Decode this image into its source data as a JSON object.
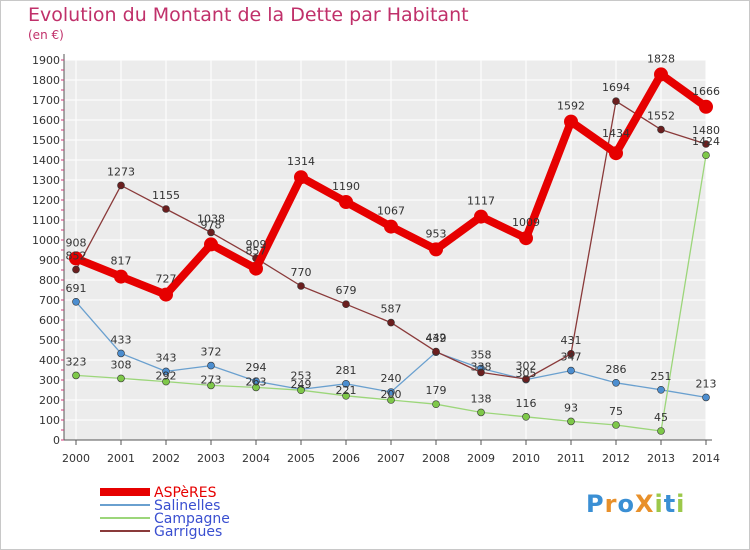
{
  "title": "Evolution du Montant de la Dette par Habitant",
  "unit": "(en €)",
  "logo": {
    "text": "ProXiti",
    "letter_colors": [
      "#3a8fd4",
      "#e8902a",
      "#3a8fd4",
      "#e8902a",
      "#9cc84a",
      "#3a8fd4",
      "#9cc84a"
    ]
  },
  "chart_data": {
    "type": "line",
    "categories": [
      "2000",
      "2001",
      "2002",
      "2003",
      "2004",
      "2005",
      "2006",
      "2007",
      "2008",
      "2009",
      "2010",
      "2011",
      "2012",
      "2013",
      "2014"
    ],
    "ylim": [
      0,
      1900
    ],
    "yticks": [
      0,
      100,
      200,
      300,
      400,
      500,
      600,
      700,
      800,
      900,
      1000,
      1100,
      1200,
      1300,
      1400,
      1500,
      1600,
      1700,
      1800,
      1900
    ],
    "grid": true,
    "legend_position": "bottom-left",
    "series": [
      {
        "name": "ASPèRES",
        "color": "#e60000",
        "marker_color": "#e60000",
        "emphasis": true,
        "values": [
          908,
          817,
          727,
          978,
          857,
          1314,
          1190,
          1067,
          953,
          1117,
          1009,
          1592,
          1434,
          1828,
          1666
        ],
        "labels": [
          "908",
          "817",
          "727",
          "978",
          "857",
          "1314",
          "1190",
          "1067",
          "953",
          "1117",
          "1009",
          "1592",
          "1434",
          "1828",
          "1666"
        ],
        "label_offsets": [
          -12,
          -12,
          -12,
          -16,
          -14,
          -12,
          -12,
          -12,
          -12,
          -12,
          -12,
          -12,
          -16,
          -12,
          -12
        ]
      },
      {
        "name": "Salinelles",
        "color": "#6aa0cf",
        "marker_color": "#4c8ed0",
        "values": [
          691,
          433,
          343,
          372,
          294,
          253,
          281,
          240,
          439,
          358,
          302,
          347,
          286,
          251,
          213
        ],
        "labels": [
          "691",
          "433",
          "343",
          "372",
          "294",
          "253",
          "281",
          "240",
          "439",
          "358",
          "302",
          "347",
          "286",
          "251",
          "213"
        ],
        "label_offsets": [
          -10,
          -10,
          -10,
          -10,
          -10,
          -10,
          -10,
          -10,
          -10,
          -10,
          -10,
          -10,
          -10,
          -10,
          -10
        ]
      },
      {
        "name": "Campagne",
        "color": "#9cd67a",
        "marker_color": "#7ec849",
        "values": [
          323,
          308,
          292,
          273,
          263,
          249,
          221,
          200,
          179,
          138,
          116,
          93,
          75,
          45,
          1424
        ],
        "labels": [
          "323",
          "308",
          "292",
          "273",
          "263",
          "249",
          "221",
          "200",
          "179",
          "138",
          "116",
          "93",
          "75",
          "45",
          "1424"
        ],
        "label_offsets": [
          -10,
          -10,
          -2,
          -2,
          -2,
          -2,
          -2,
          -2,
          -10,
          -10,
          -10,
          -10,
          -10,
          -10,
          -10
        ]
      },
      {
        "name": "Garrigues",
        "color": "#8a3a3a",
        "marker_color": "#6b1f1f",
        "values": [
          852,
          1273,
          1155,
          1038,
          909,
          770,
          679,
          587,
          442,
          338,
          305,
          431,
          1694,
          1552,
          1480
        ],
        "labels": [
          "852",
          "1273",
          "1155",
          "1038",
          "909",
          "770",
          "679",
          "587",
          "442",
          "338",
          "305",
          "431",
          "1694",
          "1552",
          "1480"
        ],
        "label_offsets": [
          -10,
          -10,
          -10,
          -10,
          -10,
          -10,
          -10,
          -10,
          -10,
          -2,
          -2,
          -10,
          -10,
          -10,
          -10
        ]
      }
    ]
  }
}
